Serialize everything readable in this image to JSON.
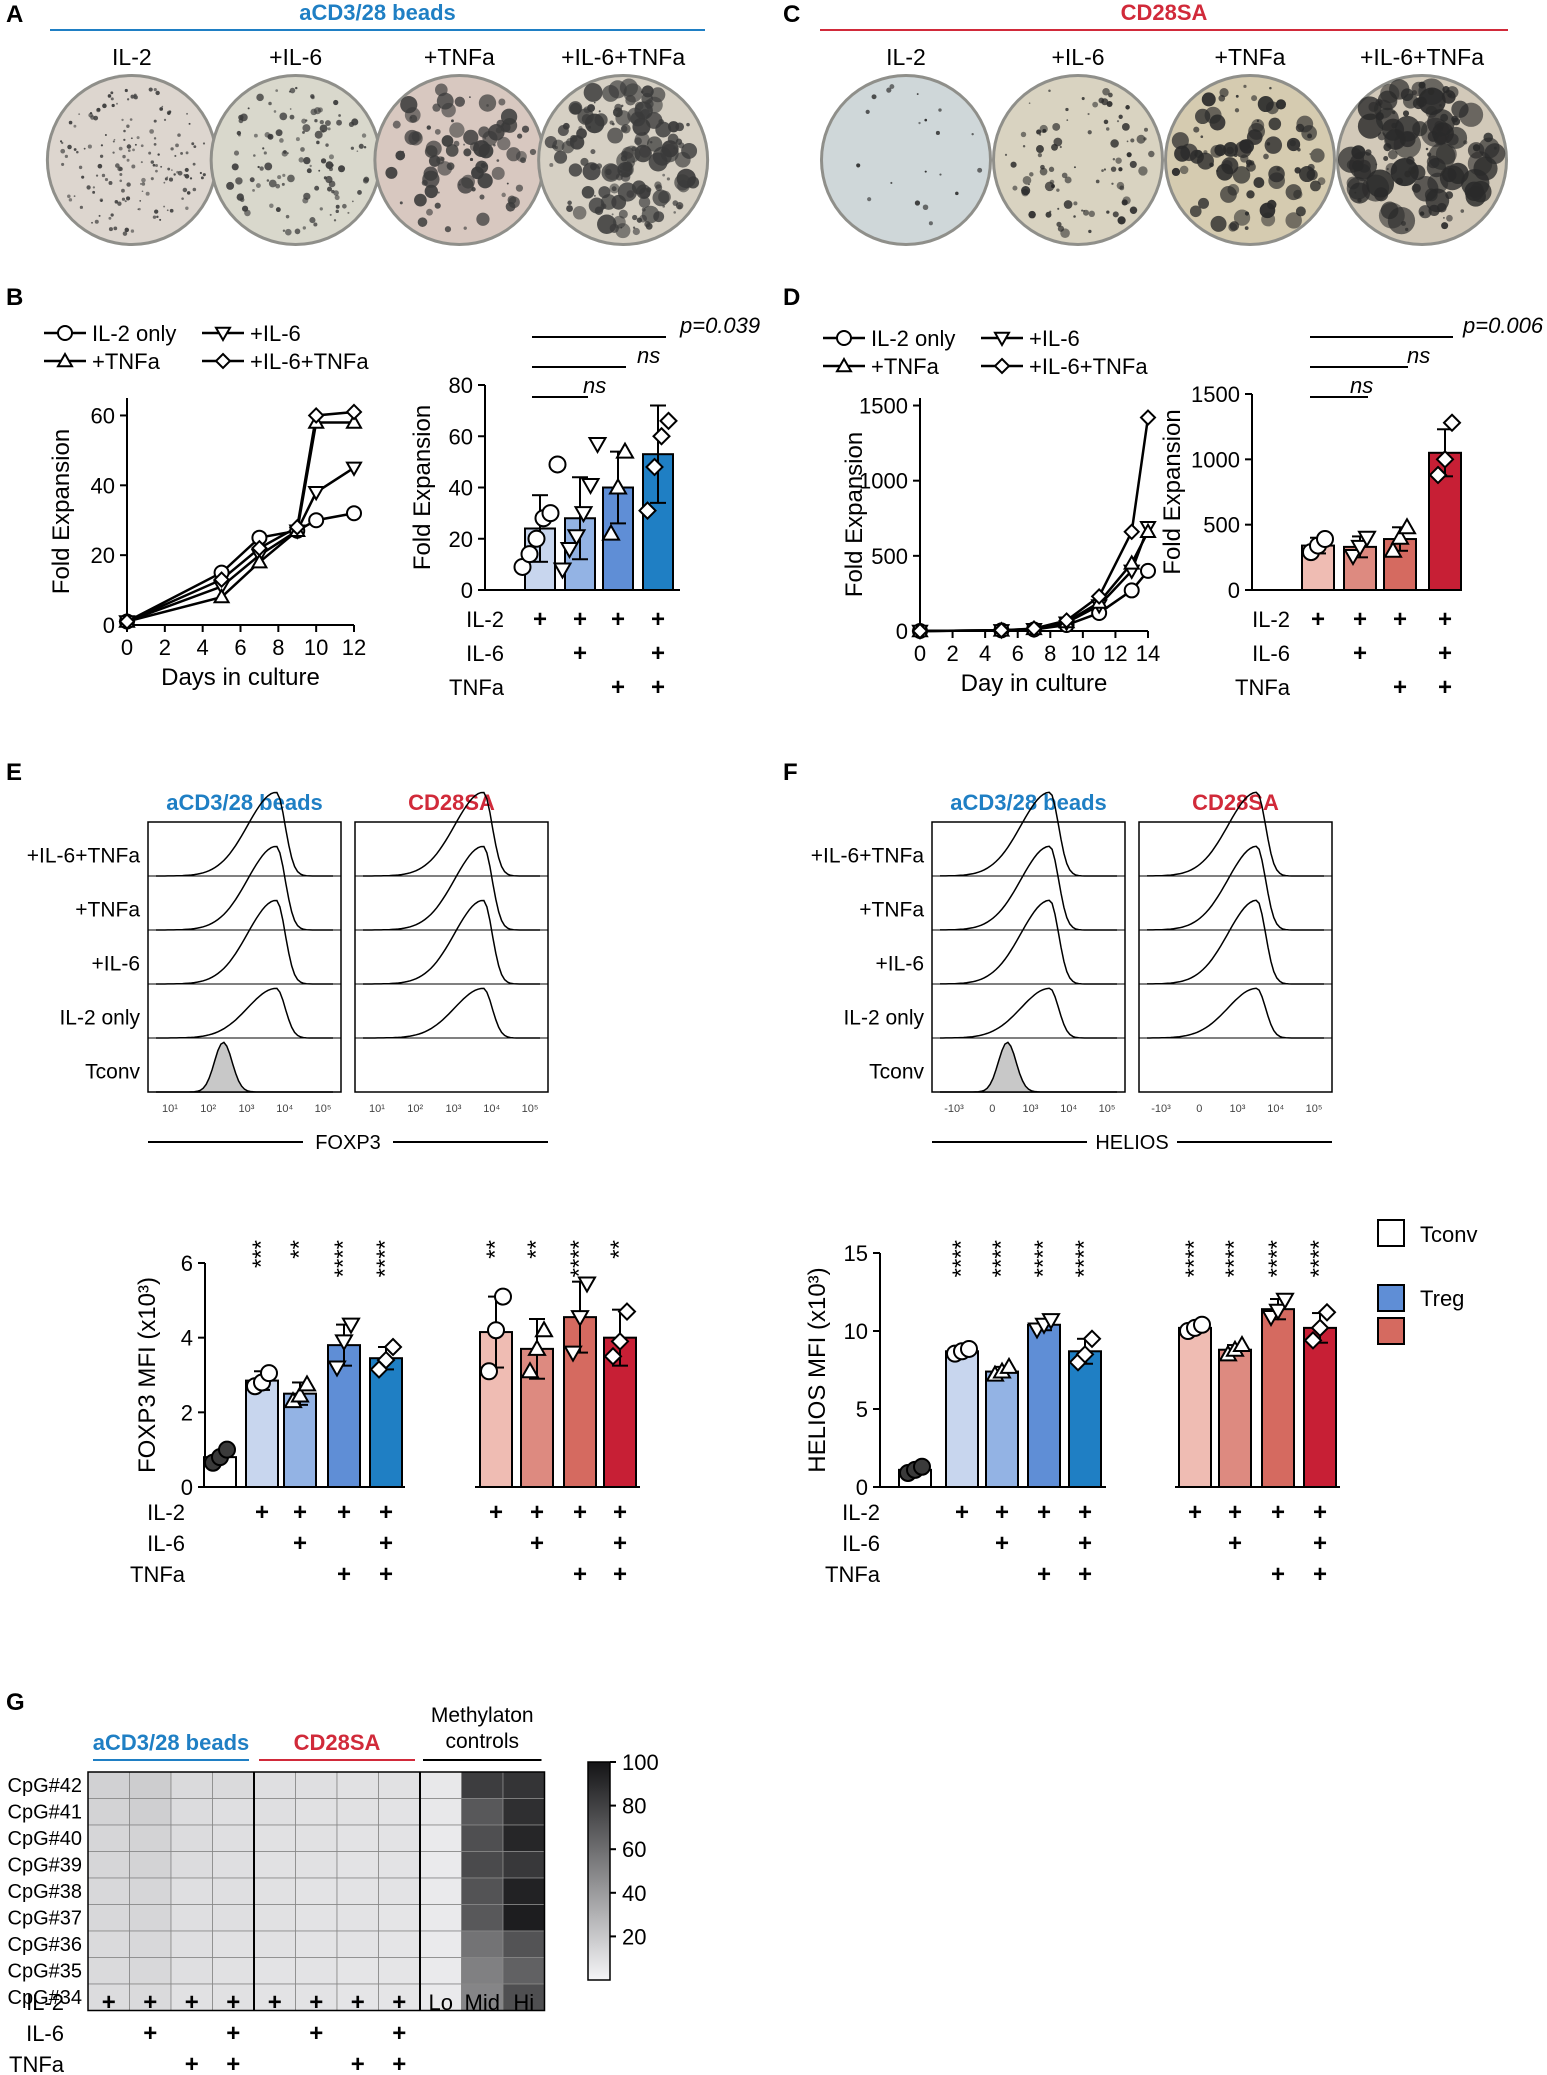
{
  "colors": {
    "blue": "#1f7fc4",
    "red": "#d12a3a",
    "blue_light": "#c8d6ee",
    "blue_mid": "#93b3e4",
    "blue_dark": "#5f8ed6",
    "blue_bright": "#1f7fc4",
    "red_light": "#efbcb3",
    "red_mid": "#dd8a80",
    "red_dark": "#d56a60",
    "red_bright": "#c71f35",
    "tconv_fill": "#ffffff"
  },
  "panels": {
    "A": {
      "letter": "A",
      "title": "aCD3/28 beads",
      "labels": [
        "IL-2",
        "+IL-6",
        "+TNFa",
        "+IL-6+TNFa"
      ]
    },
    "C": {
      "letter": "C",
      "title": "CD28SA",
      "labels": [
        "IL-2",
        "+IL-6",
        "+TNFa",
        "+IL-6+TNFa"
      ]
    },
    "B": {
      "letter": "B"
    },
    "D": {
      "letter": "D"
    },
    "E": {
      "letter": "E",
      "left_title": "aCD3/28 beads",
      "right_title": "CD28SA",
      "rows": [
        "+IL-6+TNFa",
        "+TNFa",
        "+IL-6",
        "IL-2 only",
        "Tconv"
      ],
      "xaxis": "FOXP3",
      "ticks": [
        "10¹",
        "10²",
        "10³",
        "10⁴",
        "10⁵"
      ]
    },
    "F": {
      "letter": "F",
      "left_title": "aCD3/28 beads",
      "right_title": "CD28SA",
      "rows": [
        "+IL-6+TNFa",
        "+TNFa",
        "+IL-6",
        "IL-2 only",
        "Tconv"
      ],
      "xaxis": "HELIOS",
      "ticks": [
        "-10³",
        "0",
        "10³",
        "10⁴",
        "10⁵"
      ]
    },
    "G": {
      "letter": "G"
    }
  },
  "legend": {
    "items": [
      "Tconv",
      "Treg"
    ]
  },
  "chart_data": [
    {
      "id": "B-line",
      "type": "line",
      "xlabel": "Days in culture",
      "ylabel": "Fold Expansion",
      "xlim": [
        0,
        12
      ],
      "ylim": [
        0,
        65
      ],
      "xticks": [
        0,
        2,
        4,
        6,
        8,
        10,
        12
      ],
      "yticks": [
        0,
        20,
        40,
        60
      ],
      "legend": [
        "IL-2 only",
        "+IL-6",
        "+TNFa",
        "+IL-6+TNFa"
      ],
      "series": [
        {
          "name": "IL-2 only",
          "marker": "circle",
          "x": [
            0,
            5,
            7,
            9,
            10,
            12
          ],
          "y": [
            1,
            15,
            25,
            27,
            30,
            32
          ]
        },
        {
          "name": "+IL-6",
          "marker": "tri-down",
          "x": [
            0,
            5,
            7,
            9,
            10,
            12
          ],
          "y": [
            1,
            11,
            20,
            27,
            38,
            45
          ]
        },
        {
          "name": "+TNFa",
          "marker": "tri-up",
          "x": [
            0,
            5,
            7,
            9,
            10,
            12
          ],
          "y": [
            1,
            8,
            18,
            27,
            58,
            58
          ]
        },
        {
          "name": "+IL-6+TNFa",
          "marker": "diamond",
          "x": [
            0,
            5,
            7,
            9,
            10,
            12
          ],
          "y": [
            1,
            13,
            22,
            28,
            60,
            61
          ]
        }
      ]
    },
    {
      "id": "B-bar",
      "type": "bar",
      "ylabel": "Fold Expansion",
      "ylim": [
        0,
        80
      ],
      "yticks": [
        0,
        20,
        40,
        60,
        80
      ],
      "categories": [
        "IL-2",
        "IL-2+IL-6",
        "IL-2+TNFa",
        "IL-2+IL-6+TNFa"
      ],
      "values": [
        24,
        28,
        40,
        53
      ],
      "errors": [
        13,
        16,
        14,
        19
      ],
      "markers": [
        "circle",
        "tri-down",
        "tri-up",
        "diamond"
      ],
      "points": [
        [
          9,
          14,
          20,
          28,
          30,
          49
        ],
        [
          8,
          16,
          21,
          30,
          41,
          57
        ],
        [
          22,
          40,
          54
        ],
        [
          31,
          48,
          60,
          66
        ]
      ],
      "fills": [
        "blue_light",
        "blue_mid",
        "blue_dark",
        "blue_bright"
      ],
      "conditions": {
        "rows": [
          "IL-2",
          "IL-6",
          "TNFa"
        ],
        "grid": [
          [
            "+",
            "+",
            "+",
            "+"
          ],
          [
            "",
            "+",
            "",
            "+"
          ],
          [
            "",
            "",
            "+",
            "+"
          ]
        ]
      },
      "significance": [
        {
          "label": "p=0.039",
          "from": 1,
          "to": 4
        },
        {
          "label": "ns",
          "from": 1,
          "to": 3
        },
        {
          "label": "ns",
          "from": 1,
          "to": 2
        }
      ]
    },
    {
      "id": "D-line",
      "type": "line",
      "xlabel": "Day in culture",
      "ylabel": "Fold Expansion",
      "xlim": [
        0,
        14
      ],
      "ylim": [
        0,
        1550
      ],
      "xticks": [
        0,
        2,
        4,
        6,
        8,
        10,
        12,
        14
      ],
      "yticks": [
        0,
        500,
        1000,
        1500
      ],
      "legend": [
        "IL-2 only",
        "+IL-6",
        "+TNFa",
        "+IL-6+TNFa"
      ],
      "series": [
        {
          "name": "IL-2 only",
          "marker": "circle",
          "x": [
            0,
            5,
            7,
            9,
            11,
            13,
            14
          ],
          "y": [
            0,
            4,
            10,
            40,
            120,
            270,
            400
          ]
        },
        {
          "name": "+IL-6",
          "marker": "tri-down",
          "x": [
            0,
            5,
            7,
            9,
            11,
            13,
            14
          ],
          "y": [
            0,
            4,
            12,
            55,
            170,
            400,
            690
          ]
        },
        {
          "name": "+TNFa",
          "marker": "tri-up",
          "x": [
            0,
            5,
            7,
            9,
            11,
            13,
            14
          ],
          "y": [
            0,
            4,
            14,
            60,
            190,
            450,
            660
          ]
        },
        {
          "name": "+IL-6+TNFa",
          "marker": "diamond",
          "x": [
            0,
            5,
            7,
            9,
            11,
            13,
            14
          ],
          "y": [
            0,
            5,
            16,
            70,
            230,
            660,
            1420
          ]
        }
      ]
    },
    {
      "id": "D-bar",
      "type": "bar",
      "ylabel": "Fold Expansion",
      "ylim": [
        0,
        1500
      ],
      "yticks": [
        0,
        500,
        1000,
        1500
      ],
      "categories": [
        "IL-2",
        "IL-2+IL-6",
        "IL-2+TNFa",
        "IL-2+IL-6+TNFa"
      ],
      "values": [
        340,
        330,
        390,
        1050
      ],
      "errors": [
        60,
        80,
        90,
        180
      ],
      "markers": [
        "circle",
        "tri-down",
        "tri-up",
        "diamond"
      ],
      "points": [
        [
          290,
          340,
          390
        ],
        [
          260,
          330,
          400
        ],
        [
          300,
          400,
          480
        ],
        [
          880,
          1000,
          1280
        ]
      ],
      "fills": [
        "red_light",
        "red_mid",
        "red_dark",
        "red_bright"
      ],
      "conditions": {
        "rows": [
          "IL-2",
          "IL-6",
          "TNFa"
        ],
        "grid": [
          [
            "+",
            "+",
            "+",
            "+"
          ],
          [
            "",
            "+",
            "",
            "+"
          ],
          [
            "",
            "",
            "+",
            "+"
          ]
        ]
      },
      "significance": [
        {
          "label": "p=0.006",
          "from": 1,
          "to": 4
        },
        {
          "label": "ns",
          "from": 1,
          "to": 3
        },
        {
          "label": "ns",
          "from": 1,
          "to": 2
        }
      ]
    },
    {
      "id": "E-bar",
      "type": "bar",
      "ylabel": "FOXP3 MFI (x10³)",
      "ylim": [
        0,
        6
      ],
      "yticks": [
        0,
        2,
        4,
        6
      ],
      "categories": [
        "Tconv",
        "IL-2 beads",
        "IL-6 beads",
        "TNFa beads",
        "IL-6+TNFa beads",
        "IL-2 SA",
        "IL-6 SA",
        "TNFa SA",
        "IL-6+TNFa SA"
      ],
      "values": [
        0.8,
        2.85,
        2.5,
        3.8,
        3.45,
        4.15,
        3.7,
        4.55,
        4.0
      ],
      "errors": [
        0,
        0.25,
        0.3,
        0.55,
        0.3,
        0.95,
        0.8,
        0.95,
        0.75
      ],
      "markers": [
        "circle-filled",
        "circle",
        "tri-up",
        "tri-down",
        "diamond",
        "circle",
        "tri-up",
        "tri-down",
        "diamond"
      ],
      "points": [
        [
          0.65,
          0.8,
          1.0
        ],
        [
          2.7,
          2.8,
          3.05
        ],
        [
          2.3,
          2.45,
          2.75
        ],
        [
          3.2,
          3.9,
          4.35
        ],
        [
          3.15,
          3.4,
          3.75
        ],
        [
          3.1,
          4.2,
          5.1
        ],
        [
          3.1,
          3.7,
          4.2
        ],
        [
          3.6,
          4.55,
          5.45
        ],
        [
          3.5,
          3.9,
          4.7
        ]
      ],
      "fills": [
        "tconv_fill",
        "blue_light",
        "blue_mid",
        "blue_dark",
        "blue_bright",
        "red_light",
        "red_mid",
        "red_dark",
        "red_bright"
      ],
      "stars": [
        "",
        "***",
        "**",
        "****",
        "****",
        "**",
        "**",
        "****",
        "**"
      ],
      "conditions": {
        "rows": [
          "IL-2",
          "IL-6",
          "TNFa"
        ],
        "grid": [
          [
            "",
            "+",
            "+",
            "+",
            "+",
            "+",
            "+",
            "+",
            "+"
          ],
          [
            "",
            "",
            "+",
            "",
            "+",
            "",
            "+",
            "",
            "+"
          ],
          [
            "",
            "",
            "",
            "+",
            "+",
            "",
            "",
            "+",
            "+"
          ]
        ]
      }
    },
    {
      "id": "F-bar",
      "type": "bar",
      "ylabel": "HELIOS MFI (x10³)",
      "ylim": [
        0,
        15
      ],
      "yticks": [
        0,
        5,
        10,
        15
      ],
      "categories": [
        "Tconv",
        "IL-2 beads",
        "IL-6 beads",
        "TNFa beads",
        "IL-6+TNFa beads",
        "IL-2 SA",
        "IL-6 SA",
        "TNFa SA",
        "IL-6+TNFa SA"
      ],
      "values": [
        1.1,
        8.7,
        7.4,
        10.4,
        8.7,
        10.2,
        8.8,
        11.4,
        10.2
      ],
      "errors": [
        0,
        0.15,
        0.3,
        0.35,
        0.8,
        0.2,
        0.3,
        0.65,
        0.95
      ],
      "markers": [
        "circle-filled",
        "circle",
        "tri-up",
        "tri-down",
        "diamond",
        "circle",
        "tri-up",
        "tri-down",
        "diamond"
      ],
      "points": [
        [
          0.9,
          1.1,
          1.3
        ],
        [
          8.55,
          8.7,
          8.85
        ],
        [
          7.2,
          7.4,
          7.7
        ],
        [
          10.1,
          10.4,
          10.7
        ],
        [
          8.0,
          8.5,
          9.5
        ],
        [
          10.0,
          10.2,
          10.4
        ],
        [
          8.5,
          8.8,
          9.1
        ],
        [
          10.9,
          11.3,
          12.0
        ],
        [
          9.4,
          10.2,
          11.2
        ]
      ],
      "fills": [
        "tconv_fill",
        "blue_light",
        "blue_mid",
        "blue_dark",
        "blue_bright",
        "red_light",
        "red_mid",
        "red_dark",
        "red_bright"
      ],
      "stars": [
        "",
        "****",
        "****",
        "****",
        "****",
        "****",
        "****",
        "****",
        "****"
      ],
      "conditions": {
        "rows": [
          "IL-2",
          "IL-6",
          "TNFa"
        ],
        "grid": [
          [
            "",
            "+",
            "+",
            "+",
            "+",
            "+",
            "+",
            "+",
            "+"
          ],
          [
            "",
            "",
            "+",
            "",
            "+",
            "",
            "+",
            "",
            "+"
          ],
          [
            "",
            "",
            "",
            "+",
            "+",
            "",
            "",
            "+",
            "+"
          ]
        ]
      }
    },
    {
      "id": "G-heatmap",
      "type": "heatmap",
      "group_labels": [
        "aCD3/28 beads",
        "CD28SA",
        "Methylaton controls"
      ],
      "rows": [
        "CpG#42",
        "CpG#41",
        "CpG#40",
        "CpG#39",
        "CpG#38",
        "CpG#37",
        "CpG#36",
        "CpG#35",
        "CpG#34"
      ],
      "colorbar": {
        "min": 0,
        "max": 100,
        "ticks": [
          20,
          40,
          60,
          80,
          100
        ]
      },
      "conditions": {
        "rows": [
          "IL-2",
          "IL-6",
          "TNFa"
        ],
        "grid": [
          [
            "+",
            "+",
            "+",
            "+",
            "+",
            "+",
            "+",
            "+",
            "Lo",
            "Mid",
            "Hi"
          ],
          [
            "",
            "+",
            "",
            "+",
            "",
            "+",
            "",
            "+",
            "",
            "",
            ""
          ],
          [
            "",
            "",
            "+",
            "+",
            "",
            "",
            "+",
            "+",
            "",
            "",
            ""
          ]
        ]
      },
      "values": [
        [
          16,
          18,
          12,
          12,
          10,
          10,
          9,
          9,
          6,
          82,
          86
        ],
        [
          15,
          17,
          11,
          10,
          10,
          9,
          9,
          8,
          6,
          70,
          88
        ],
        [
          14,
          15,
          11,
          10,
          9,
          9,
          8,
          8,
          5,
          74,
          92
        ],
        [
          14,
          15,
          11,
          10,
          9,
          9,
          8,
          8,
          5,
          76,
          84
        ],
        [
          13,
          14,
          10,
          10,
          9,
          8,
          8,
          8,
          5,
          72,
          94
        ],
        [
          13,
          14,
          10,
          10,
          9,
          8,
          8,
          7,
          5,
          70,
          96
        ],
        [
          12,
          13,
          10,
          9,
          9,
          8,
          8,
          7,
          5,
          58,
          72
        ],
        [
          12,
          13,
          10,
          9,
          8,
          8,
          7,
          7,
          5,
          52,
          66
        ],
        [
          11,
          12,
          9,
          9,
          8,
          8,
          7,
          7,
          5,
          50,
          74
        ]
      ]
    }
  ]
}
